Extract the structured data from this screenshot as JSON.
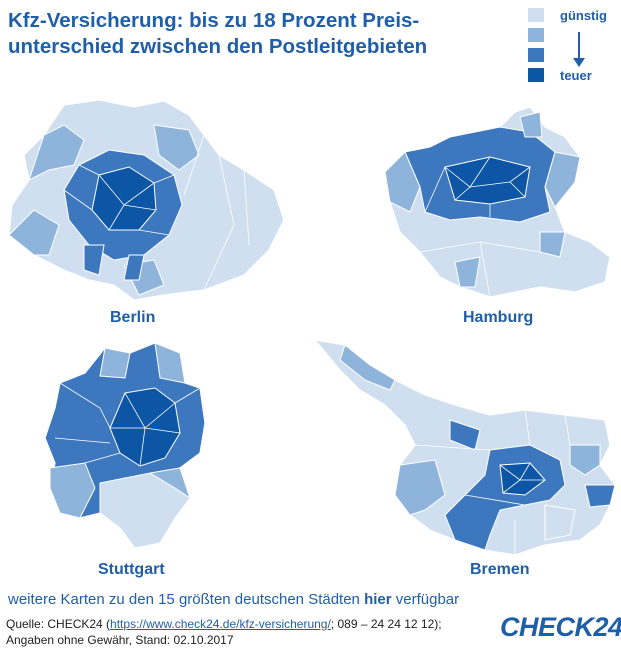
{
  "header": {
    "title_line1": "Kfz-Versicherung: bis zu 18 Prozent Preis-",
    "title_line2": "unterschied zwischen den Postleitgebieten"
  },
  "legend": {
    "label_low": "günstig",
    "label_high": "teuer",
    "colors": [
      "#cfdff0",
      "#8fb4dc",
      "#3d78bf",
      "#0d56a6"
    ]
  },
  "maps": {
    "berlin": "Berlin",
    "hamburg": "Hamburg",
    "stuttgart": "Stuttgart",
    "bremen": "Bremen"
  },
  "footer": {
    "more_pre": "weitere Karten zu den 15 größten deutschen Städten ",
    "more_link": "hier",
    "more_post": " verfügbar",
    "source_pre": "Quelle: CHECK24 (",
    "source_url": "https://www.check24.de/kfz-versicherung/",
    "source_post": "; 089 – 24 24 12 12);",
    "source_line2": "Angaben ohne Gewähr, Stand: 02.10.2017",
    "logo": "CHECK24"
  }
}
